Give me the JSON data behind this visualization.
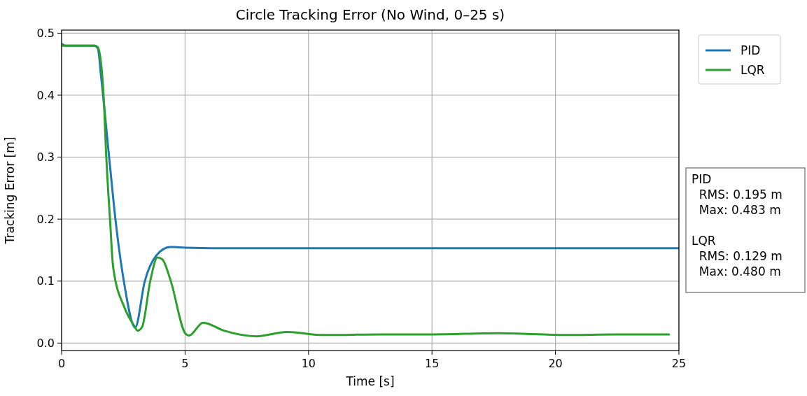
{
  "chart_data": {
    "type": "line",
    "title": "Circle Tracking Error (No Wind, 0–25 s)",
    "xlabel": "Time [s]",
    "ylabel": "Tracking Error [m]",
    "xlim": [
      0,
      25
    ],
    "ylim": [
      -0.012,
      0.505
    ],
    "xticks": [
      0,
      5,
      10,
      15,
      20,
      25
    ],
    "yticks": [
      {
        "value": 0,
        "label": "0.0"
      },
      0.1,
      0.2,
      0.3,
      0.4,
      0.5
    ],
    "grid": true,
    "legend": "top right",
    "line_style": "solid",
    "marker": "none",
    "annotations": [
      "PID\n  RMS: 0.195 m\n  Max: 0.483 m\n\nLQR\n  RMS: 0.129 m\n  Max: 0.480 m"
    ],
    "series": [
      {
        "name": "PID",
        "color": "#1f77b4",
        "x": [
          0,
          0.15,
          1.33,
          1.47,
          1.6,
          1.93,
          2.18,
          2.52,
          2.98,
          3.37,
          3.83,
          4.4,
          5,
          7,
          10,
          15,
          20,
          25
        ],
        "values": [
          0.483,
          0.48,
          0.48,
          0.475,
          0.43,
          0.298,
          0.2,
          0.1,
          0.025,
          0.1,
          0.141,
          0.155,
          0.154,
          0.153,
          0.153,
          0.153,
          0.153,
          0.153
        ]
      },
      {
        "name": "LQR",
        "color": "#2ca02c",
        "x": [
          0,
          1.35,
          1.47,
          1.7,
          1.81,
          1.96,
          2.09,
          2.55,
          2.94,
          3.08,
          3.26,
          3.6,
          3.88,
          4.08,
          4.4,
          5.02,
          5.16,
          5.73,
          6.58,
          7.9,
          9.13,
          10.6,
          13,
          15,
          17.7,
          20.4,
          22.5,
          24.6
        ],
        "values": [
          0.48,
          0.48,
          0.477,
          0.4,
          0.3,
          0.2,
          0.122,
          0.057,
          0.028,
          0.02,
          0.026,
          0.102,
          0.138,
          0.135,
          0.103,
          0.015,
          0.012,
          0.033,
          0.02,
          0.011,
          0.018,
          0.013,
          0.014,
          0.014,
          0.016,
          0.013,
          0.014,
          0.014
        ]
      }
    ]
  }
}
